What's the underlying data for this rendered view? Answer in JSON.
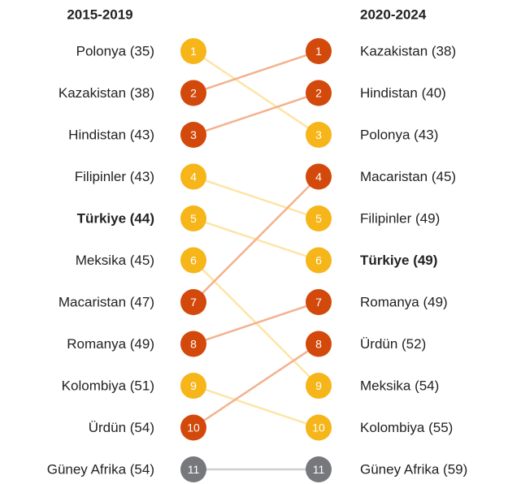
{
  "chart_data": {
    "type": "bump",
    "left_title": "2015-2019",
    "right_title": "2020-2024",
    "left": [
      {
        "label": "Polonya (35)",
        "rank": 1,
        "color": "#f6b519"
      },
      {
        "label": "Kazakistan (38)",
        "rank": 2,
        "color": "#d2490b"
      },
      {
        "label": "Hindistan (43)",
        "rank": 3,
        "color": "#d2490b"
      },
      {
        "label": "Filipinler (43)",
        "rank": 4,
        "color": "#f6b519"
      },
      {
        "label": "Türkiye (44)",
        "rank": 5,
        "color": "#f6b519",
        "bold": true
      },
      {
        "label": "Meksika (45)",
        "rank": 6,
        "color": "#f6b519"
      },
      {
        "label": "Macaristan (47)",
        "rank": 7,
        "color": "#d2490b"
      },
      {
        "label": "Romanya (49)",
        "rank": 8,
        "color": "#d2490b"
      },
      {
        "label": "Kolombiya (51)",
        "rank": 9,
        "color": "#f6b519"
      },
      {
        "label": "Ürdün (54)",
        "rank": 10,
        "color": "#d2490b"
      },
      {
        "label": "Güney Afrika (54)",
        "rank": 11,
        "color": "#77787b"
      }
    ],
    "right": [
      {
        "label": "Kazakistan (38)",
        "rank": 1,
        "color": "#d2490b"
      },
      {
        "label": "Hindistan (40)",
        "rank": 2,
        "color": "#d2490b"
      },
      {
        "label": "Polonya (43)",
        "rank": 3,
        "color": "#f6b519"
      },
      {
        "label": "Macaristan (45)",
        "rank": 4,
        "color": "#d2490b"
      },
      {
        "label": "Filipinler (49)",
        "rank": 5,
        "color": "#f6b519"
      },
      {
        "label": "Türkiye (49)",
        "rank": 6,
        "color": "#f6b519",
        "bold": true
      },
      {
        "label": "Romanya (49)",
        "rank": 7,
        "color": "#d2490b"
      },
      {
        "label": "Ürdün (52)",
        "rank": 8,
        "color": "#d2490b"
      },
      {
        "label": "Meksika (54)",
        "rank": 9,
        "color": "#f6b519"
      },
      {
        "label": "Kolombiya (55)",
        "rank": 10,
        "color": "#f6b519"
      },
      {
        "label": "Güney Afrika (59)",
        "rank": 11,
        "color": "#77787b"
      }
    ],
    "links": [
      {
        "from": 1,
        "to": 3,
        "color": "#fde5a6"
      },
      {
        "from": 2,
        "to": 1,
        "color": "#f3b28e"
      },
      {
        "from": 3,
        "to": 2,
        "color": "#f3b28e"
      },
      {
        "from": 4,
        "to": 5,
        "color": "#fde5a6"
      },
      {
        "from": 5,
        "to": 6,
        "color": "#fde5a6"
      },
      {
        "from": 6,
        "to": 9,
        "color": "#fde5a6"
      },
      {
        "from": 7,
        "to": 4,
        "color": "#f3b28e"
      },
      {
        "from": 8,
        "to": 7,
        "color": "#f3b28e"
      },
      {
        "from": 9,
        "to": 10,
        "color": "#fde5a6"
      },
      {
        "from": 10,
        "to": 8,
        "color": "#f3b28e"
      },
      {
        "from": 11,
        "to": 11,
        "color": "#cfcfd0"
      }
    ]
  }
}
